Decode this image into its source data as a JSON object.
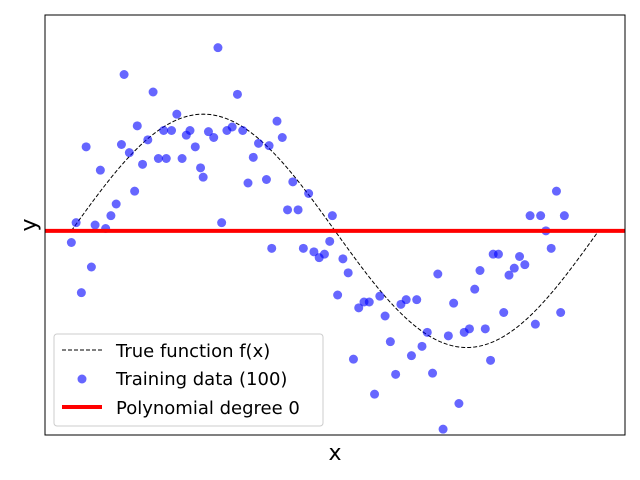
{
  "chart_data": {
    "type": "scatter",
    "title": "",
    "xlabel": "x",
    "ylabel": "y",
    "xlim": [
      -0.05,
      1.05
    ],
    "ylim": [
      -1.75,
      1.85
    ],
    "x_ticks_shown": false,
    "y_ticks_shown": false,
    "grid": false,
    "legend_position": "lower-left",
    "series": [
      {
        "name": "True function f(x)",
        "kind": "line",
        "style": "dashed",
        "color": "#000000",
        "function": "sin(2*pi*x)",
        "x_range": [
          0,
          1
        ]
      },
      {
        "name": "Training data (100)",
        "kind": "scatter",
        "color": "#0000ff",
        "alpha": 0.6,
        "points": [
          [
            0.0,
            -0.1
          ],
          [
            0.009,
            0.07
          ],
          [
            0.019,
            -0.53
          ],
          [
            0.028,
            0.72
          ],
          [
            0.038,
            -0.31
          ],
          [
            0.045,
            0.05
          ],
          [
            0.055,
            0.52
          ],
          [
            0.065,
            0.02
          ],
          [
            0.075,
            0.13
          ],
          [
            0.085,
            0.23
          ],
          [
            0.095,
            0.74
          ],
          [
            0.1,
            1.34
          ],
          [
            0.11,
            0.67
          ],
          [
            0.12,
            0.34
          ],
          [
            0.125,
            0.9
          ],
          [
            0.135,
            0.57
          ],
          [
            0.145,
            0.78
          ],
          [
            0.155,
            1.19
          ],
          [
            0.165,
            0.62
          ],
          [
            0.175,
            0.86
          ],
          [
            0.18,
            0.62
          ],
          [
            0.19,
            0.86
          ],
          [
            0.2,
            1.0
          ],
          [
            0.21,
            0.62
          ],
          [
            0.218,
            0.82
          ],
          [
            0.225,
            0.86
          ],
          [
            0.235,
            0.72
          ],
          [
            0.245,
            0.54
          ],
          [
            0.25,
            0.46
          ],
          [
            0.26,
            0.85
          ],
          [
            0.27,
            0.8
          ],
          [
            0.278,
            1.57
          ],
          [
            0.285,
            0.07
          ],
          [
            0.295,
            0.86
          ],
          [
            0.305,
            0.89
          ],
          [
            0.315,
            1.17
          ],
          [
            0.325,
            0.86
          ],
          [
            0.335,
            0.41
          ],
          [
            0.345,
            0.63
          ],
          [
            0.355,
            0.75
          ],
          [
            0.37,
            0.44
          ],
          [
            0.375,
            0.73
          ],
          [
            0.38,
            -0.15
          ],
          [
            0.39,
            0.94
          ],
          [
            0.4,
            0.8
          ],
          [
            0.41,
            0.18
          ],
          [
            0.42,
            0.42
          ],
          [
            0.43,
            0.18
          ],
          [
            0.44,
            -0.15
          ],
          [
            0.45,
            0.32
          ],
          [
            0.46,
            -0.18
          ],
          [
            0.47,
            -0.23
          ],
          [
            0.48,
            -0.2
          ],
          [
            0.49,
            -0.09
          ],
          [
            0.495,
            0.13
          ],
          [
            0.505,
            -0.55
          ],
          [
            0.515,
            -0.24
          ],
          [
            0.525,
            -0.36
          ],
          [
            0.535,
            -1.1
          ],
          [
            0.545,
            -0.66
          ],
          [
            0.555,
            -0.61
          ],
          [
            0.565,
            -0.61
          ],
          [
            0.575,
            -1.4
          ],
          [
            0.585,
            -0.56
          ],
          [
            0.595,
            -0.73
          ],
          [
            0.605,
            -0.95
          ],
          [
            0.615,
            -1.23
          ],
          [
            0.625,
            -0.63
          ],
          [
            0.635,
            -0.59
          ],
          [
            0.645,
            -1.07
          ],
          [
            0.655,
            -0.59
          ],
          [
            0.665,
            -0.99
          ],
          [
            0.675,
            -0.87
          ],
          [
            0.685,
            -1.22
          ],
          [
            0.695,
            -0.37
          ],
          [
            0.705,
            -1.7
          ],
          [
            0.715,
            -0.9
          ],
          [
            0.725,
            -0.62
          ],
          [
            0.735,
            -1.48
          ],
          [
            0.745,
            -0.87
          ],
          [
            0.755,
            -0.84
          ],
          [
            0.765,
            -0.5
          ],
          [
            0.775,
            -0.34
          ],
          [
            0.785,
            -0.84
          ],
          [
            0.795,
            -1.11
          ],
          [
            0.8,
            -0.2
          ],
          [
            0.81,
            -0.2
          ],
          [
            0.82,
            -0.7
          ],
          [
            0.83,
            -0.38
          ],
          [
            0.84,
            -0.32
          ],
          [
            0.85,
            -0.22
          ],
          [
            0.86,
            -0.29
          ],
          [
            0.87,
            0.13
          ],
          [
            0.88,
            -0.8
          ],
          [
            0.89,
            0.13
          ],
          [
            0.9,
            0.0
          ],
          [
            0.91,
            -0.15
          ],
          [
            0.92,
            0.34
          ],
          [
            0.928,
            -0.7
          ],
          [
            0.935,
            0.13
          ]
        ]
      },
      {
        "name": "Polynomial degree 0",
        "kind": "hline",
        "color": "#ff0000",
        "y": 0.0
      }
    ]
  }
}
